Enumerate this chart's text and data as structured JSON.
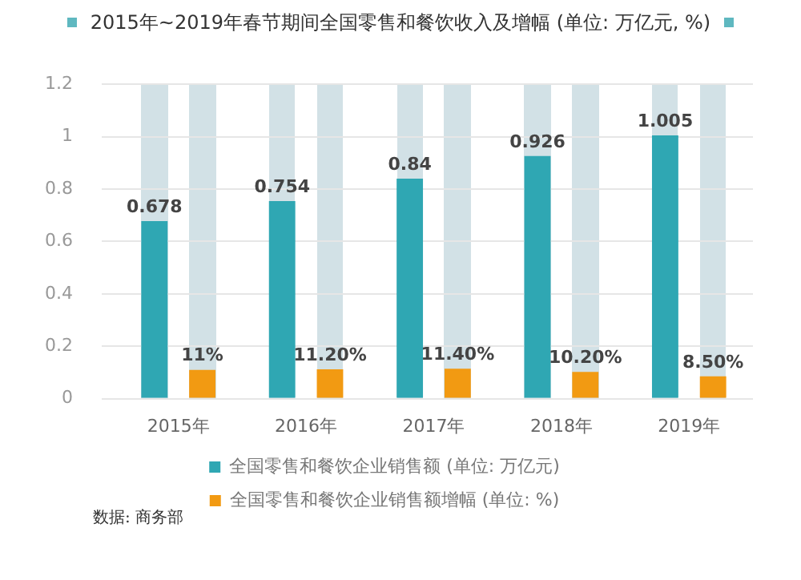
{
  "chart_data": {
    "type": "bar",
    "title": "2015年~2019年春节期间全国零售和餐饮收入及增幅 (单位: 万亿元, %)",
    "categories": [
      "2015年",
      "2016年",
      "2017年",
      "2018年",
      "2019年"
    ],
    "series": [
      {
        "name": "全国零售和餐饮企业销售额 (单位: 万亿元)",
        "color": "#2fa7b3",
        "values": [
          0.678,
          0.754,
          0.84,
          0.926,
          1.005
        ],
        "value_labels": [
          "0.678",
          "0.754",
          "0.84",
          "0.926",
          "1.005"
        ]
      },
      {
        "name": "全国零售和餐饮企业销售额增幅 (单位: %)",
        "color": "#f29a12",
        "values": [
          0.11,
          0.112,
          0.114,
          0.102,
          0.085
        ],
        "value_labels": [
          "11%",
          "11.20%",
          "11.40%",
          "10.20%",
          "8.50%"
        ]
      }
    ],
    "ylim": [
      0,
      1.2
    ],
    "yticks": [
      0,
      0.2,
      0.4,
      0.6,
      0.8,
      1.0,
      1.2
    ],
    "grid": "y",
    "legend": "bottom",
    "annotations": [
      "数据: 商务部"
    ]
  }
}
